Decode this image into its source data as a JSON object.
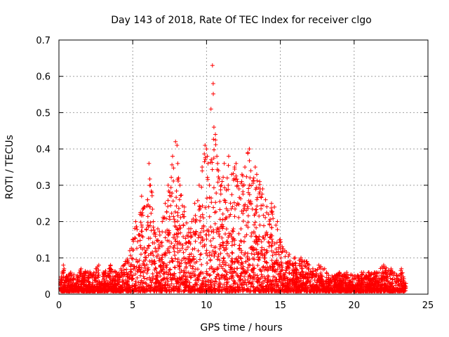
{
  "chart_data": {
    "type": "scatter",
    "title": "Day 143 of 2018, Rate Of TEC Index for receiver clgo",
    "xlabel": "GPS time / hours",
    "ylabel": "ROTI / TECUs",
    "xlim": [
      0,
      25
    ],
    "ylim": [
      0,
      0.7
    ],
    "xticks": [
      0,
      5,
      10,
      15,
      20,
      25
    ],
    "yticks": [
      0,
      0.1,
      0.2,
      0.3,
      0.4,
      0.5,
      0.6,
      0.7
    ],
    "xtick_labels": [
      "0",
      "5",
      "10",
      "15",
      "20",
      "25"
    ],
    "ytick_labels": [
      "0",
      "0.1",
      "0.2",
      "0.3",
      "0.4",
      "0.5",
      "0.6",
      "0.7"
    ],
    "grid": true,
    "marker": "+",
    "color": "#ff0000",
    "series": [
      {
        "name": "ROTI",
        "x": [
          0.1,
          0.3,
          0.35,
          0.5,
          0.8,
          1.2,
          1.5,
          2.0,
          2.5,
          2.7,
          3.0,
          3.4,
          3.5,
          3.9,
          4.2,
          4.5,
          4.8,
          5.0,
          5.2,
          5.5,
          5.6,
          5.8,
          6.0,
          6.1,
          6.2,
          6.3,
          6.4,
          6.5,
          6.7,
          7.0,
          7.2,
          7.4,
          7.5,
          7.7,
          7.9,
          8.0,
          8.05,
          8.1,
          8.2,
          8.5,
          8.8,
          9.0,
          9.2,
          9.5,
          9.7,
          9.9,
          10.0,
          10.05,
          10.1,
          10.2,
          10.3,
          10.4,
          10.45,
          10.5,
          10.6,
          10.7,
          10.75,
          10.8,
          11.0,
          11.2,
          11.4,
          11.5,
          11.7,
          11.9,
          12.0,
          12.1,
          12.2,
          12.4,
          12.6,
          12.8,
          12.9,
          13.0,
          13.2,
          13.3,
          13.4,
          13.6,
          13.8,
          14.0,
          14.2,
          14.4,
          14.6,
          14.8,
          15.0,
          15.3,
          15.6,
          16.0,
          16.4,
          16.8,
          17.2,
          17.6,
          18.0,
          18.5,
          19.0,
          19.5,
          20.0,
          20.5,
          21.0,
          21.5,
          22.0,
          22.5,
          23.0,
          23.2,
          23.5
        ],
        "y": [
          0.04,
          0.08,
          0.07,
          0.05,
          0.06,
          0.05,
          0.07,
          0.06,
          0.07,
          0.08,
          0.06,
          0.07,
          0.08,
          0.06,
          0.07,
          0.09,
          0.12,
          0.15,
          0.2,
          0.22,
          0.27,
          0.24,
          0.26,
          0.36,
          0.3,
          0.28,
          0.2,
          0.17,
          0.18,
          0.2,
          0.25,
          0.3,
          0.28,
          0.38,
          0.42,
          0.41,
          0.36,
          0.32,
          0.3,
          0.24,
          0.18,
          0.2,
          0.25,
          0.3,
          0.35,
          0.41,
          0.4,
          0.38,
          0.36,
          0.3,
          0.51,
          0.63,
          0.58,
          0.46,
          0.44,
          0.38,
          0.36,
          0.34,
          0.3,
          0.36,
          0.32,
          0.38,
          0.33,
          0.35,
          0.36,
          0.31,
          0.29,
          0.33,
          0.35,
          0.39,
          0.4,
          0.34,
          0.32,
          0.35,
          0.33,
          0.31,
          0.29,
          0.26,
          0.22,
          0.25,
          0.24,
          0.2,
          0.15,
          0.12,
          0.11,
          0.1,
          0.1,
          0.09,
          0.07,
          0.08,
          0.07,
          0.05,
          0.06,
          0.06,
          0.05,
          0.06,
          0.06,
          0.06,
          0.08,
          0.07,
          0.05,
          0.07,
          0.03
        ]
      }
    ]
  }
}
